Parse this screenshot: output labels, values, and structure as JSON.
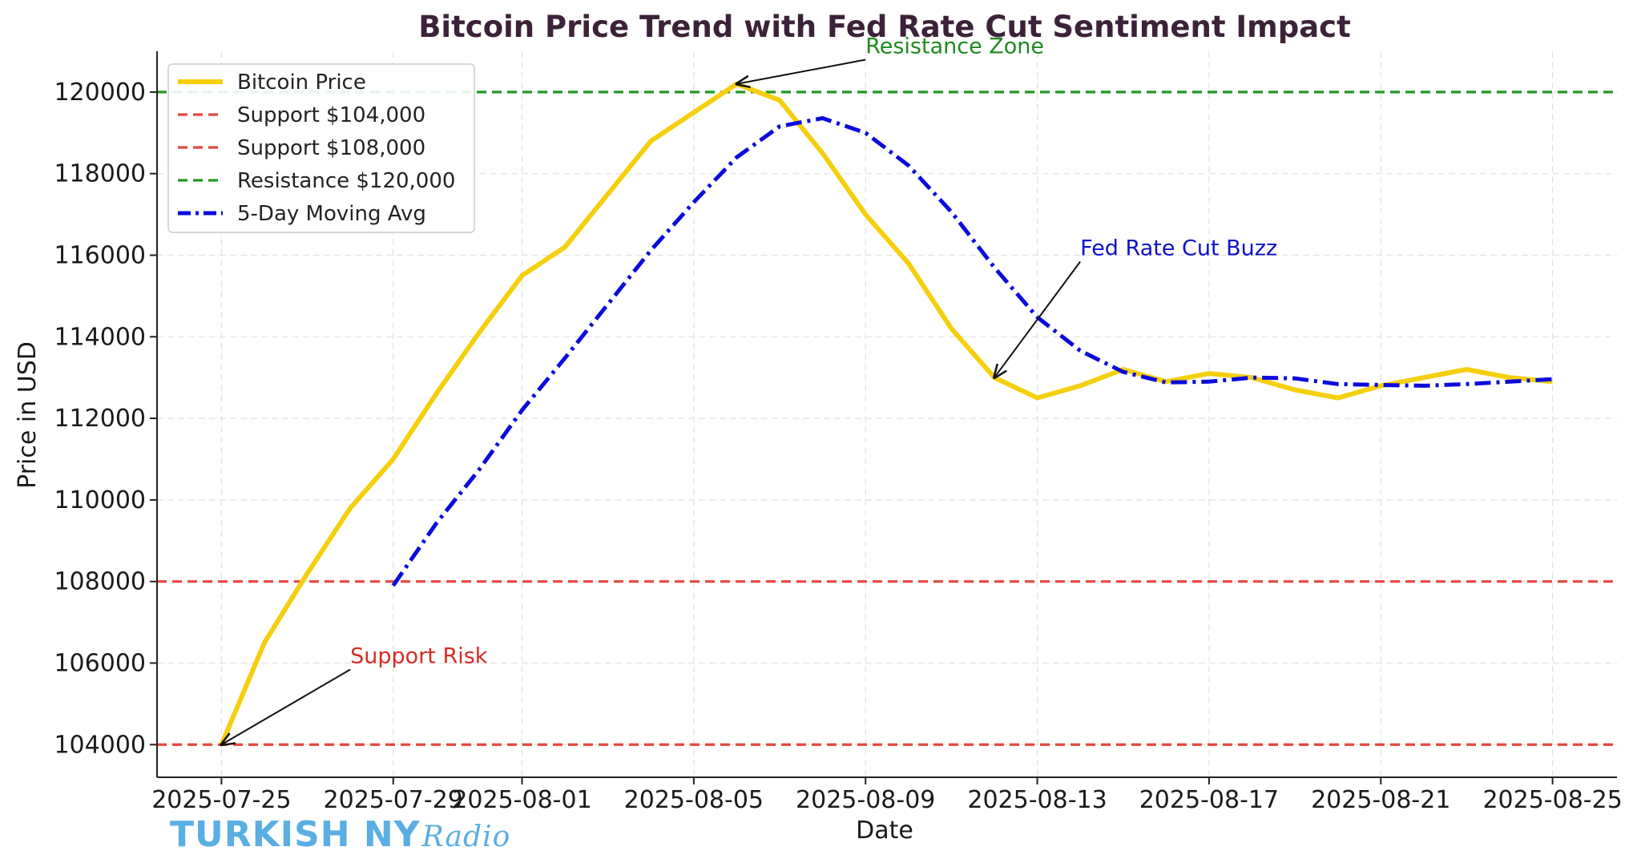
{
  "chart_data": {
    "type": "line",
    "title": "Bitcoin Price Trend with Fed Rate Cut Sentiment Impact",
    "xlabel": "Date",
    "ylabel": "Price in USD",
    "x_start": "2025-07-25",
    "x_tick_labels": [
      "2025-07-25",
      "2025-07-29",
      "2025-08-01",
      "2025-08-05",
      "2025-08-09",
      "2025-08-13",
      "2025-08-17",
      "2025-08-21",
      "2025-08-25"
    ],
    "x_tick_days": [
      0,
      4,
      7,
      11,
      15,
      19,
      23,
      27,
      31
    ],
    "xlim": [
      -1.5,
      32.5
    ],
    "y_ticks": [
      104000,
      106000,
      108000,
      110000,
      112000,
      114000,
      116000,
      118000,
      120000
    ],
    "ylim": [
      103200,
      121000
    ],
    "grid": true,
    "legend_position": "top-left",
    "series": [
      {
        "name": "Bitcoin Price",
        "color": "#f5cf0e",
        "style": "solid",
        "values": [
          104000,
          106500,
          108200,
          109800,
          111000,
          112600,
          114100,
          115500,
          116200,
          117500,
          118800,
          119500,
          120200,
          119800,
          118500,
          117000,
          115800,
          114200,
          113000,
          112500,
          112800,
          113200,
          112900,
          113100,
          113000,
          112700,
          112500,
          112800,
          113000,
          113200,
          113000,
          112900
        ]
      },
      {
        "name": "5-Day Moving Avg",
        "color": "#0a0adc",
        "style": "dashdot",
        "start_day": 4,
        "values": [
          107900,
          109420,
          110740,
          112200,
          113480,
          114800,
          116120,
          117300,
          118400,
          119160,
          119360,
          119000,
          118200,
          117060,
          115700,
          114480,
          113660,
          113140,
          112880,
          112900,
          113000,
          112980,
          112840,
          112820,
          112800,
          112840,
          112900,
          112960
        ]
      }
    ],
    "reference_lines": [
      {
        "name": "Support $104,000",
        "value": 104000,
        "color": "#e8463c",
        "style": "dashed"
      },
      {
        "name": "Support $108,000",
        "value": 108000,
        "color": "#e8463c",
        "style": "dashed"
      },
      {
        "name": "Resistance $120,000",
        "value": 120000,
        "color": "#1e9a1e",
        "style": "dashed"
      }
    ],
    "annotations": [
      {
        "text": "Resistance Zone",
        "color": "#1e8a1e",
        "point_day": 12,
        "point_value": 120200,
        "text_day": 15,
        "text_value": 120950
      },
      {
        "text": "Fed Rate Cut Buzz",
        "color": "#1010c8",
        "point_day": 18,
        "point_value": 113000,
        "text_day": 20,
        "text_value": 116000
      },
      {
        "text": "Support Risk",
        "color": "#d92b22",
        "point_day": 0,
        "point_value": 104000,
        "text_day": 3,
        "text_value": 106000
      }
    ]
  },
  "watermark": {
    "brand": "TURKISH NY",
    "script": "Radio"
  }
}
